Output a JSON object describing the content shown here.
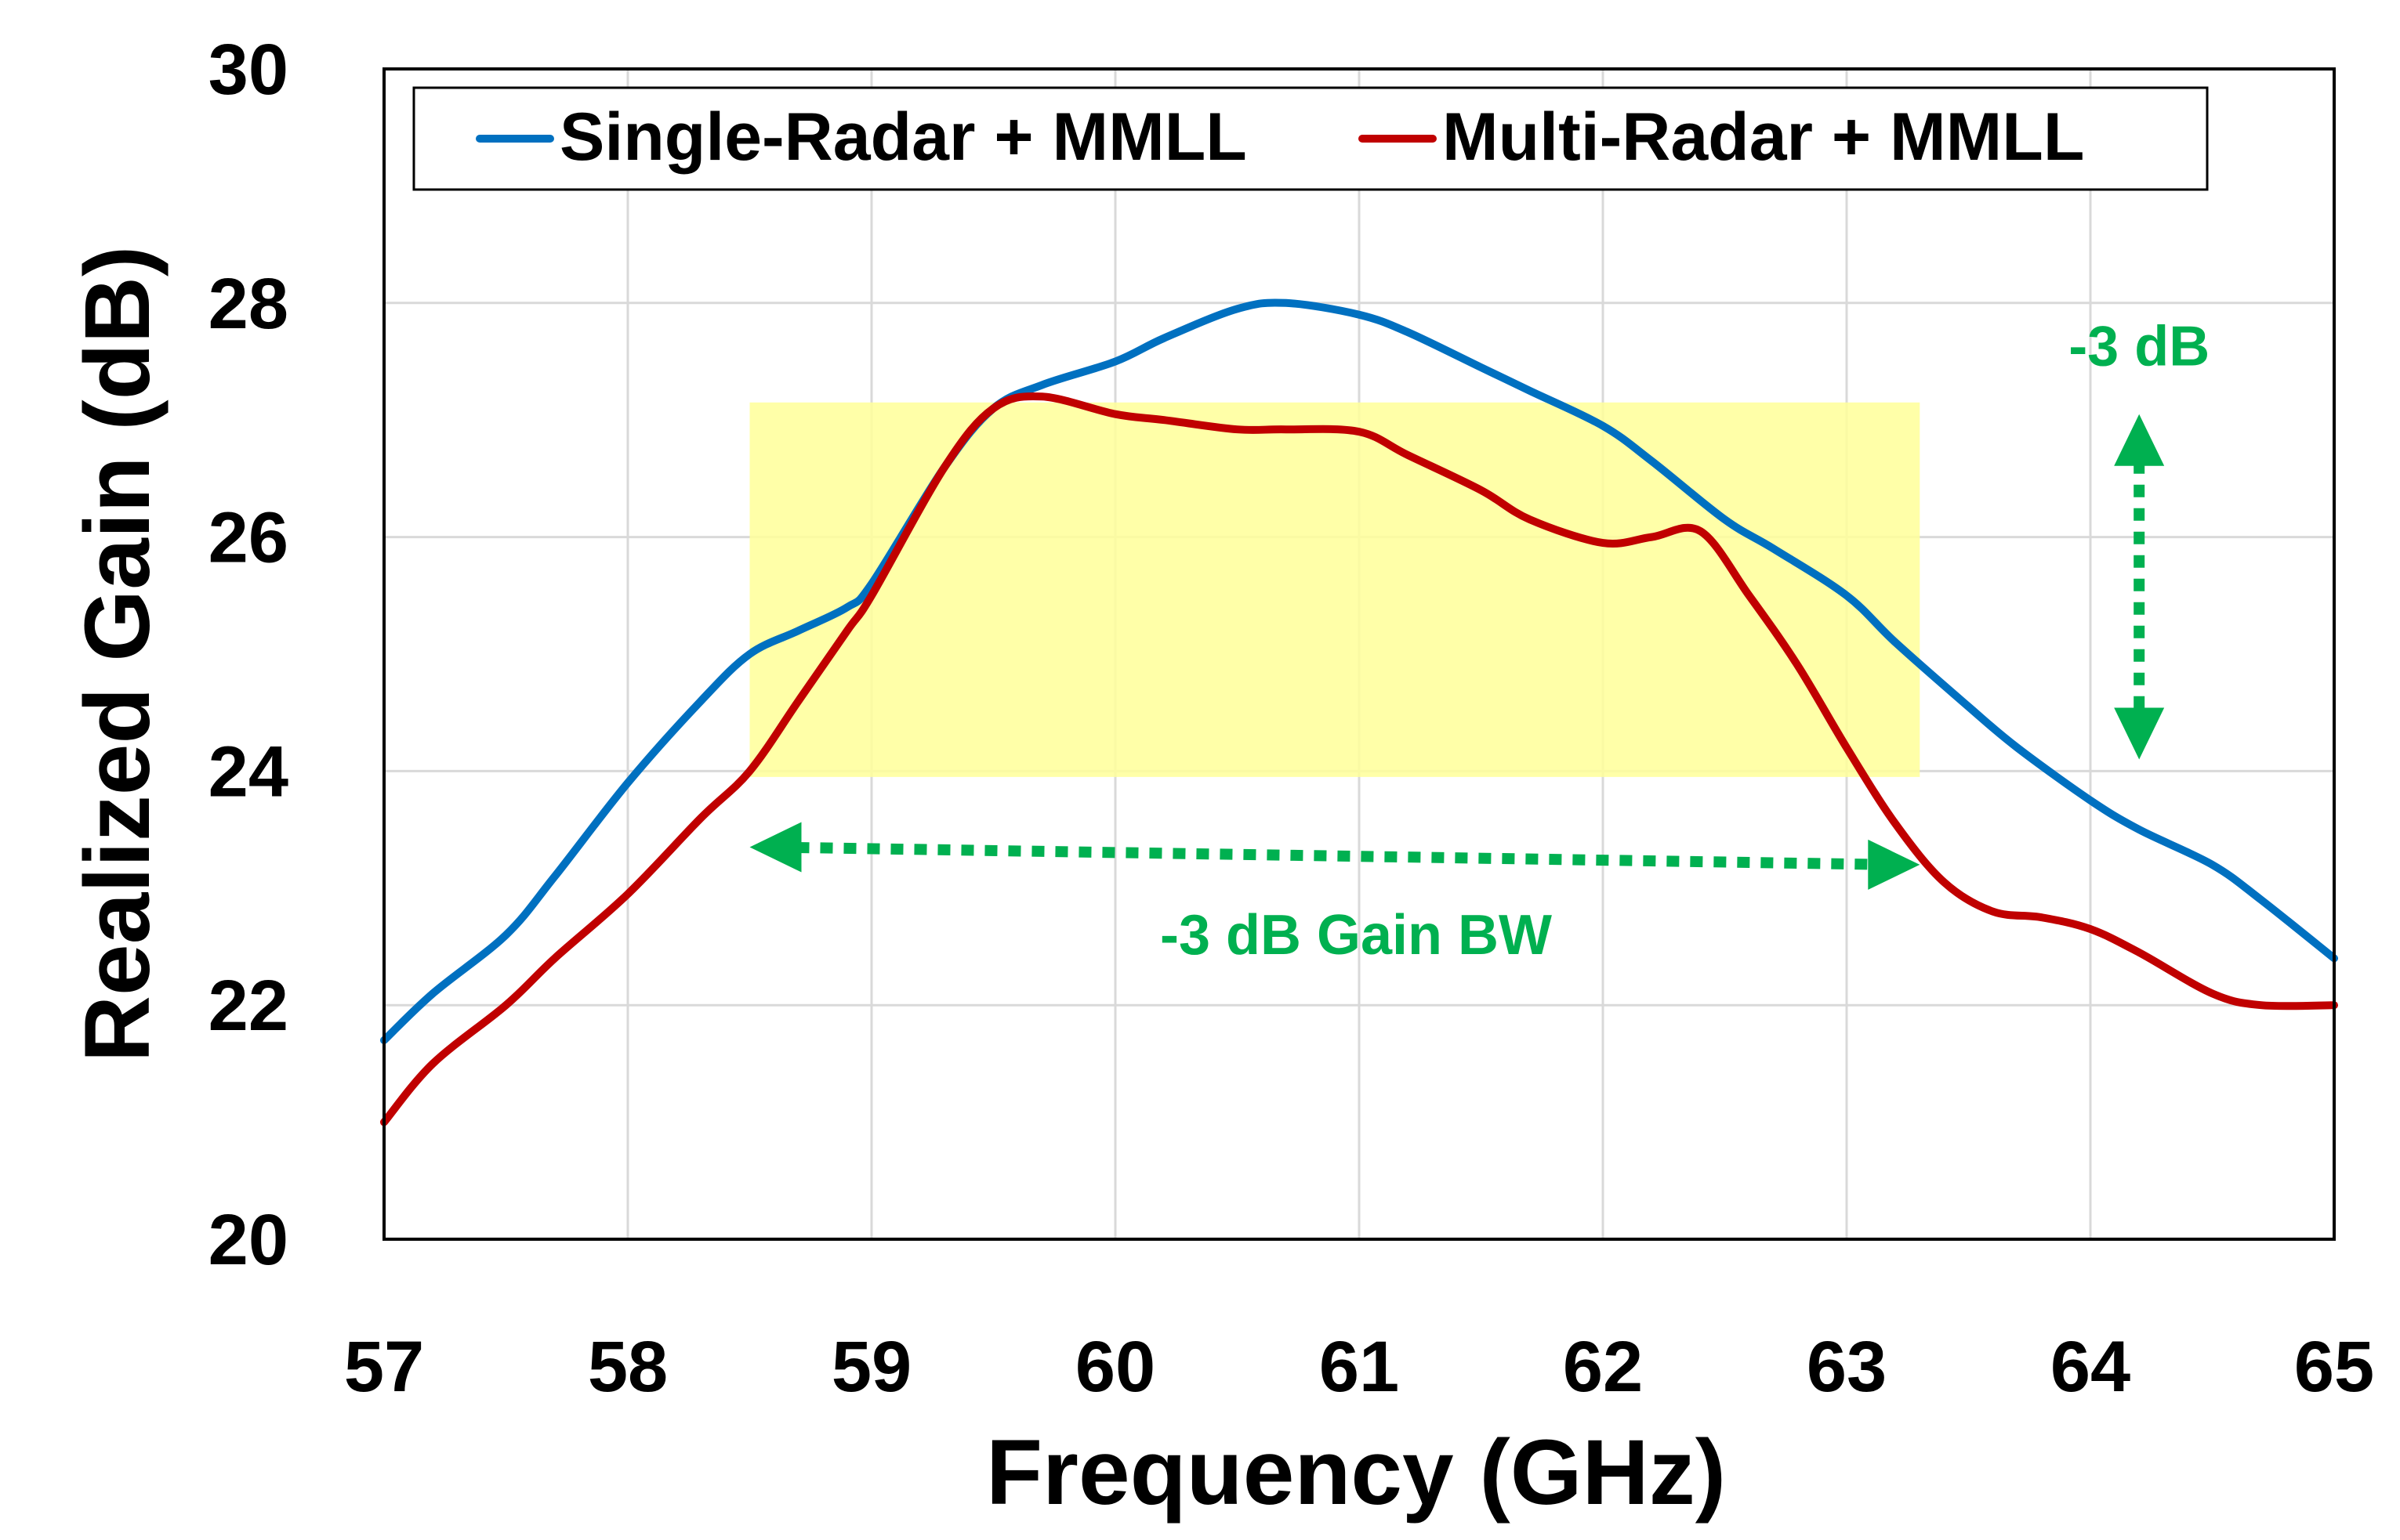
{
  "chart_data": {
    "type": "line",
    "title": "",
    "xlabel": "Frequency (GHz)",
    "ylabel": "Realized Gain (dB)",
    "xlim": [
      57,
      65
    ],
    "ylim": [
      20,
      30
    ],
    "xticks": [
      57,
      58,
      59,
      60,
      61,
      62,
      63,
      64,
      65
    ],
    "yticks": [
      20,
      22,
      24,
      26,
      28,
      30
    ],
    "grid": true,
    "legend_position": "top",
    "series": [
      {
        "name": "Single-Radar + MMLL",
        "color": "#0070c0",
        "x": [
          57.0,
          57.2,
          57.5,
          57.7,
          58.0,
          58.3,
          58.5,
          58.7,
          58.9,
          59.0,
          59.3,
          59.5,
          59.7,
          60.0,
          60.2,
          60.5,
          60.7,
          61.0,
          61.2,
          61.5,
          61.7,
          62.0,
          62.2,
          62.5,
          62.7,
          63.0,
          63.2,
          63.5,
          63.7,
          64.0,
          64.2,
          64.5,
          64.7,
          65.0
        ],
        "y": [
          21.7,
          22.1,
          22.6,
          23.1,
          23.9,
          24.6,
          25.0,
          25.2,
          25.4,
          25.6,
          26.6,
          27.1,
          27.3,
          27.5,
          27.7,
          27.95,
          28.0,
          27.9,
          27.75,
          27.45,
          27.25,
          26.95,
          26.65,
          26.15,
          25.9,
          25.5,
          25.1,
          24.55,
          24.2,
          23.75,
          23.5,
          23.2,
          22.9,
          22.4
        ]
      },
      {
        "name": "Multi-Radar + MMLL",
        "color": "#c00000",
        "x": [
          57.0,
          57.2,
          57.5,
          57.7,
          58.0,
          58.3,
          58.5,
          58.7,
          58.9,
          59.0,
          59.3,
          59.5,
          59.7,
          60.0,
          60.2,
          60.5,
          60.7,
          61.0,
          61.2,
          61.5,
          61.7,
          62.0,
          62.2,
          62.4,
          62.6,
          62.8,
          63.0,
          63.2,
          63.4,
          63.6,
          63.8,
          64.0,
          64.2,
          64.5,
          64.7,
          65.0
        ],
        "y": [
          21.0,
          21.5,
          22.0,
          22.4,
          22.95,
          23.6,
          24.0,
          24.6,
          25.2,
          25.5,
          26.6,
          27.1,
          27.2,
          27.05,
          27.0,
          26.92,
          26.92,
          26.9,
          26.7,
          26.4,
          26.15,
          25.95,
          26.0,
          26.05,
          25.5,
          24.9,
          24.2,
          23.55,
          23.05,
          22.8,
          22.75,
          22.65,
          22.45,
          22.1,
          22.0,
          22.0
        ]
      }
    ],
    "annotations": {
      "bw_label": "-3 dB Gain BW",
      "db_label": "-3 dB",
      "highlight": {
        "x_start": 58.5,
        "x_end": 63.3,
        "y_low": 23.95,
        "y_high": 27.15,
        "color": "#ffff99"
      },
      "bw_arrow": {
        "x_start": 58.5,
        "x_end": 63.3,
        "y_start": 23.35,
        "y_end": 23.2
      },
      "db_arrow": {
        "x": 64.2,
        "y_start": 24.1,
        "y_end": 27.05
      },
      "arrow_color": "#00b050"
    }
  }
}
